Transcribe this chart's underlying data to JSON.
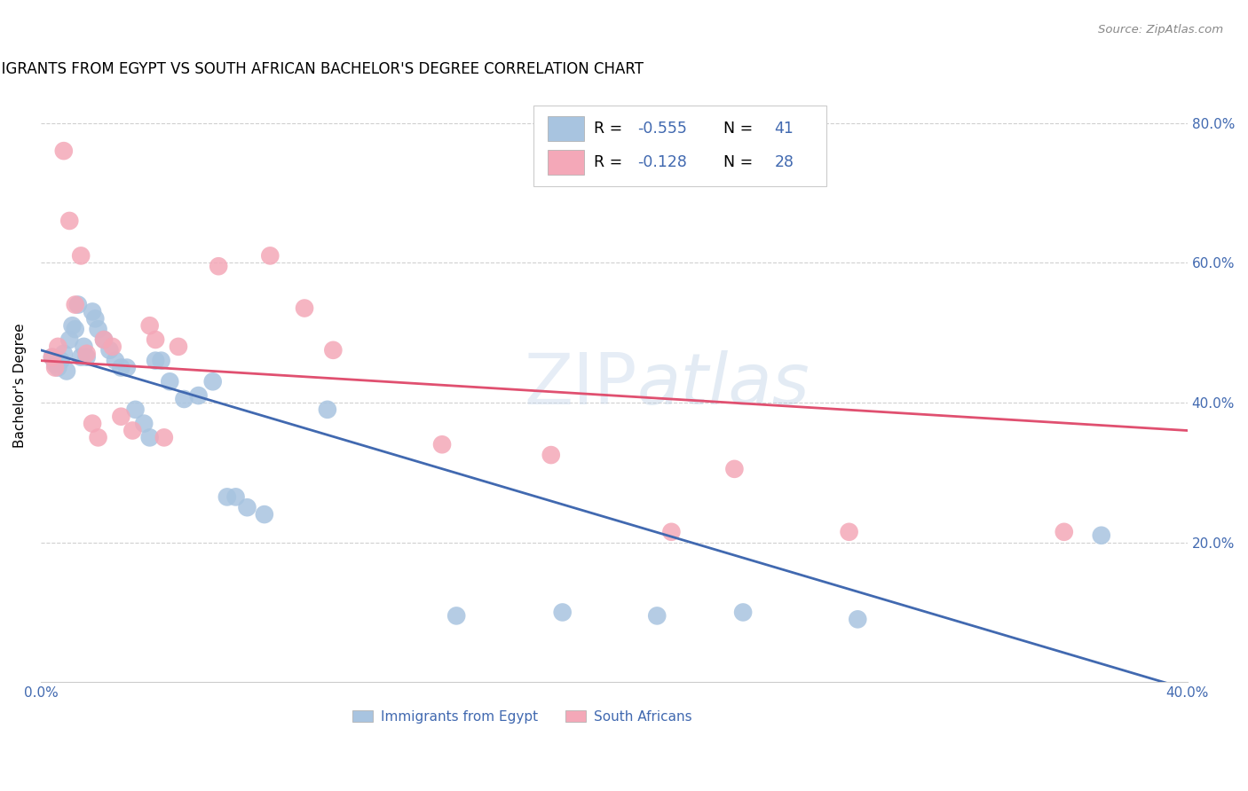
{
  "title": "IMMIGRANTS FROM EGYPT VS SOUTH AFRICAN BACHELOR'S DEGREE CORRELATION CHART",
  "source": "Source: ZipAtlas.com",
  "ylabel": "Bachelor's Degree",
  "xlim": [
    0.0,
    0.4
  ],
  "ylim": [
    0.0,
    0.85
  ],
  "blue_R": "-0.555",
  "blue_N": "41",
  "pink_R": "-0.128",
  "pink_N": "28",
  "blue_color": "#a8c4e0",
  "pink_color": "#f4a8b8",
  "blue_line_color": "#4169b0",
  "pink_line_color": "#e05070",
  "text_color": "#4169b0",
  "blue_points_x": [
    0.004,
    0.005,
    0.006,
    0.007,
    0.008,
    0.009,
    0.01,
    0.011,
    0.012,
    0.013,
    0.014,
    0.015,
    0.016,
    0.018,
    0.019,
    0.02,
    0.022,
    0.024,
    0.026,
    0.028,
    0.03,
    0.033,
    0.036,
    0.038,
    0.04,
    0.042,
    0.045,
    0.05,
    0.055,
    0.06,
    0.065,
    0.068,
    0.072,
    0.078,
    0.1,
    0.145,
    0.182,
    0.215,
    0.245,
    0.285,
    0.37
  ],
  "blue_points_y": [
    0.465,
    0.455,
    0.45,
    0.46,
    0.47,
    0.445,
    0.49,
    0.51,
    0.505,
    0.54,
    0.465,
    0.48,
    0.465,
    0.53,
    0.52,
    0.505,
    0.49,
    0.475,
    0.46,
    0.45,
    0.45,
    0.39,
    0.37,
    0.35,
    0.46,
    0.46,
    0.43,
    0.405,
    0.41,
    0.43,
    0.265,
    0.265,
    0.25,
    0.24,
    0.39,
    0.095,
    0.1,
    0.095,
    0.1,
    0.09,
    0.21
  ],
  "pink_points_x": [
    0.004,
    0.005,
    0.006,
    0.008,
    0.01,
    0.012,
    0.014,
    0.016,
    0.018,
    0.02,
    0.022,
    0.025,
    0.028,
    0.032,
    0.038,
    0.04,
    0.043,
    0.048,
    0.062,
    0.08,
    0.092,
    0.102,
    0.14,
    0.178,
    0.22,
    0.242,
    0.282,
    0.357
  ],
  "pink_points_y": [
    0.465,
    0.45,
    0.48,
    0.76,
    0.66,
    0.54,
    0.61,
    0.47,
    0.37,
    0.35,
    0.49,
    0.48,
    0.38,
    0.36,
    0.51,
    0.49,
    0.35,
    0.48,
    0.595,
    0.61,
    0.535,
    0.475,
    0.34,
    0.325,
    0.215,
    0.305,
    0.215,
    0.215
  ],
  "blue_trend_x": [
    0.0,
    0.4
  ],
  "blue_trend_y": [
    0.475,
    -0.01
  ],
  "pink_trend_x": [
    0.0,
    0.4
  ],
  "pink_trend_y": [
    0.46,
    0.36
  ]
}
